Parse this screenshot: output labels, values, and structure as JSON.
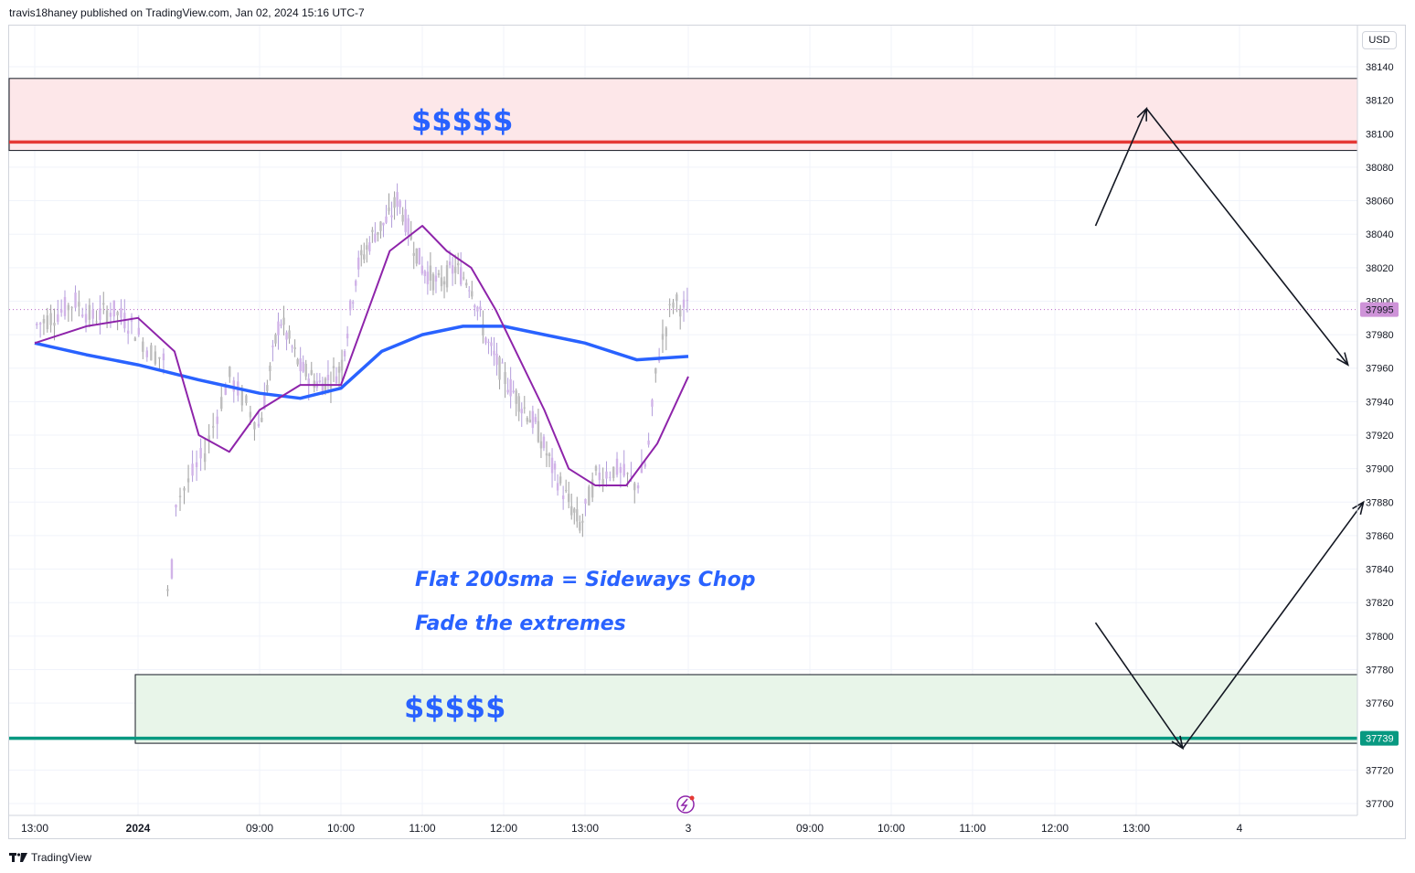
{
  "header": {
    "text": "travis18haney published on TradingView.com, Jan 02, 2024 15:16 UTC-7"
  },
  "footer": {
    "brand": "TradingView",
    "logo_icon": "tradingview-logo-icon"
  },
  "price_axis": {
    "currency": "USD",
    "ticks": [
      "38140",
      "38120",
      "38100",
      "38080",
      "38060",
      "38040",
      "38020",
      "38000",
      "37980",
      "37960",
      "37940",
      "37920",
      "37900",
      "37880",
      "37860",
      "37840",
      "37820",
      "37800",
      "37780",
      "37760",
      "37740",
      "37720",
      "37700"
    ]
  },
  "time_axis": {
    "labels": [
      "13:00",
      "2024",
      "09:00",
      "10:00",
      "11:00",
      "12:00",
      "13:00",
      "3",
      "09:00",
      "10:00",
      "11:00",
      "12:00",
      "13:00",
      "4"
    ]
  },
  "annotations": {
    "top_zone_text": "$$$$$",
    "bottom_zone_text": "$$$$$",
    "note_1": "Flat 200sma = Sideways Chop",
    "note_2": "Fade the extremes"
  },
  "colors": {
    "candle": "#c3a3d8",
    "sma_fast": "#8e24aa",
    "sma_200": "#2962ff",
    "resistance_line": "#e53935",
    "resistance_zone": "#fde7e9",
    "support_line": "#089981",
    "support_zone": "#e8f5e9",
    "annotation_text": "#2962ff",
    "last_price_badge": "#ce93d8",
    "support_badge": "#089981"
  },
  "chart_data": {
    "type": "candlestick",
    "title": "",
    "y_axis": {
      "min": 37700,
      "max": 38140,
      "tick_step": 20,
      "scale": "linear"
    },
    "x_axis": {
      "labels": [
        "13:00",
        "2024",
        "09:00",
        "10:00",
        "11:00",
        "12:00",
        "13:00",
        "3",
        "09:00",
        "10:00",
        "11:00",
        "12:00",
        "13:00",
        "4"
      ]
    },
    "last_price": {
      "value": 37995,
      "label": "37995"
    },
    "levels": [
      {
        "name": "resistance",
        "value": 38095,
        "color": "#e53935"
      },
      {
        "name": "support",
        "value": 37739,
        "label": "37739",
        "color": "#089981"
      }
    ],
    "zones": [
      {
        "name": "supply",
        "from": 38090,
        "to": 38133,
        "color": "#fde7e9",
        "text": "$$$$$"
      },
      {
        "name": "demand",
        "from": 37736,
        "to": 37777,
        "color": "#e8f5e9",
        "text": "$$$$$"
      }
    ],
    "price_path": [
      {
        "t": 0.0,
        "v": 37985
      },
      {
        "t": 0.2,
        "v": 37992
      },
      {
        "t": 0.4,
        "v": 38000
      },
      {
        "t": 0.55,
        "v": 37990
      },
      {
        "t": 0.75,
        "v": 37995
      },
      {
        "t": 0.95,
        "v": 37985
      },
      {
        "t": 1.1,
        "v": 37970
      },
      {
        "t": 1.22,
        "v": 37965
      },
      {
        "t": 1.25,
        "v": 37790
      },
      {
        "t": 1.3,
        "v": 37880
      },
      {
        "t": 1.4,
        "v": 37890
      },
      {
        "t": 1.55,
        "v": 37910
      },
      {
        "t": 1.75,
        "v": 37955
      },
      {
        "t": 2.0,
        "v": 37925
      },
      {
        "t": 2.25,
        "v": 37990
      },
      {
        "t": 2.5,
        "v": 37960
      },
      {
        "t": 2.75,
        "v": 37950
      },
      {
        "t": 3.0,
        "v": 37960
      },
      {
        "t": 3.2,
        "v": 38020
      },
      {
        "t": 3.4,
        "v": 38040
      },
      {
        "t": 3.6,
        "v": 38050
      },
      {
        "t": 3.7,
        "v": 38062
      },
      {
        "t": 3.85,
        "v": 38040
      },
      {
        "t": 4.0,
        "v": 38020
      },
      {
        "t": 4.2,
        "v": 38010
      },
      {
        "t": 4.4,
        "v": 38020
      },
      {
        "t": 4.6,
        "v": 38010
      },
      {
        "t": 4.8,
        "v": 37975
      },
      {
        "t": 5.0,
        "v": 37955
      },
      {
        "t": 5.2,
        "v": 37940
      },
      {
        "t": 5.4,
        "v": 37925
      },
      {
        "t": 5.6,
        "v": 37900
      },
      {
        "t": 5.8,
        "v": 37880
      },
      {
        "t": 5.95,
        "v": 37865
      },
      {
        "t": 6.1,
        "v": 37895
      },
      {
        "t": 6.3,
        "v": 37900
      },
      {
        "t": 6.5,
        "v": 37890
      },
      {
        "t": 6.6,
        "v": 37905
      },
      {
        "t": 6.7,
        "v": 37965
      },
      {
        "t": 6.85,
        "v": 38000
      },
      {
        "t": 7.0,
        "v": 37995
      }
    ],
    "sma_fast": [
      {
        "t": 0.0,
        "v": 37975
      },
      {
        "t": 0.5,
        "v": 37985
      },
      {
        "t": 1.0,
        "v": 37990
      },
      {
        "t": 1.3,
        "v": 37970
      },
      {
        "t": 1.5,
        "v": 37920
      },
      {
        "t": 1.75,
        "v": 37910
      },
      {
        "t": 2.0,
        "v": 37935
      },
      {
        "t": 2.5,
        "v": 37950
      },
      {
        "t": 3.0,
        "v": 37950
      },
      {
        "t": 3.3,
        "v": 37990
      },
      {
        "t": 3.6,
        "v": 38030
      },
      {
        "t": 4.0,
        "v": 38045
      },
      {
        "t": 4.3,
        "v": 38030
      },
      {
        "t": 4.6,
        "v": 38020
      },
      {
        "t": 4.9,
        "v": 37995
      },
      {
        "t": 5.2,
        "v": 37965
      },
      {
        "t": 5.5,
        "v": 37935
      },
      {
        "t": 5.8,
        "v": 37900
      },
      {
        "t": 6.1,
        "v": 37890
      },
      {
        "t": 6.4,
        "v": 37890
      },
      {
        "t": 6.7,
        "v": 37915
      },
      {
        "t": 7.0,
        "v": 37955
      }
    ],
    "sma_200": [
      {
        "t": 0.0,
        "v": 37975
      },
      {
        "t": 0.5,
        "v": 37968
      },
      {
        "t": 1.0,
        "v": 37962
      },
      {
        "t": 1.5,
        "v": 37953
      },
      {
        "t": 2.0,
        "v": 37945
      },
      {
        "t": 2.5,
        "v": 37942
      },
      {
        "t": 3.0,
        "v": 37948
      },
      {
        "t": 3.5,
        "v": 37970
      },
      {
        "t": 4.0,
        "v": 37980
      },
      {
        "t": 4.5,
        "v": 37985
      },
      {
        "t": 5.0,
        "v": 37985
      },
      {
        "t": 5.5,
        "v": 37980
      },
      {
        "t": 6.0,
        "v": 37975
      },
      {
        "t": 6.5,
        "v": 37965
      },
      {
        "t": 7.0,
        "v": 37967
      }
    ],
    "projection_arrows": [
      {
        "from": {
          "t": 11.5,
          "v": 38045
        },
        "to": {
          "t": 12.1,
          "v": 38115
        }
      },
      {
        "from": {
          "t": 12.1,
          "v": 38115
        },
        "to": {
          "t": 14.05,
          "v": 37962
        }
      },
      {
        "from": {
          "t": 11.5,
          "v": 37808
        },
        "to": {
          "t": 12.45,
          "v": 37733
        }
      },
      {
        "from": {
          "t": 12.45,
          "v": 37733
        },
        "to": {
          "t": 14.2,
          "v": 37880
        }
      }
    ]
  }
}
